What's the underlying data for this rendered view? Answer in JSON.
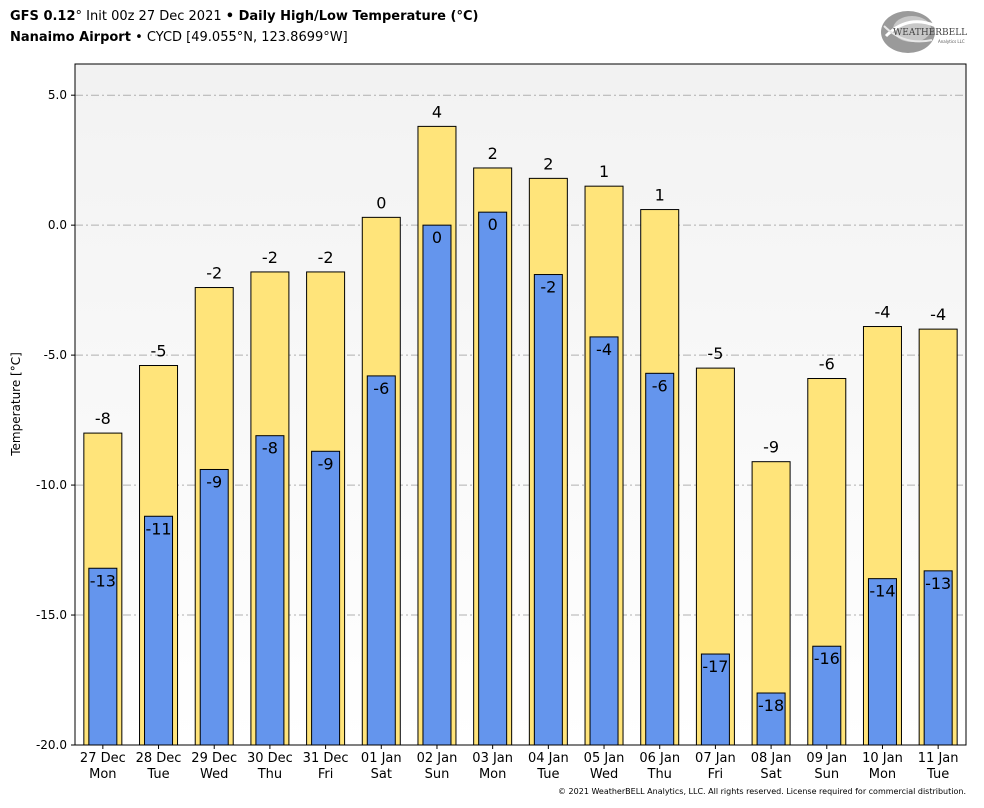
{
  "header": {
    "line1_model": "GFS 0.12",
    "line1_degree": "°",
    "line1_init": " Init 00z 27 Dec 2021 ",
    "line1_bullet": "•",
    "line1_title": " Daily High/Low Temperature (",
    "line1_unit": "°C)",
    "line2_station": "Nanaimo Airport",
    "line2_bullet": " • ",
    "line2_code": "CYCD [49.055°N, 123.8699°W]"
  },
  "logo": {
    "text_main": "WEATHERBELL",
    "text_sub": "Analytics LLC",
    "icon": "weatherbell-swirl-logo"
  },
  "footer": {
    "copyright": "© 2021 WeatherBELL Analytics, LLC. All rights reserved. License required for commercial distribution."
  },
  "colors": {
    "high": "#FFE47A",
    "low": "#6495ED",
    "plot_bg": "#f4f4f4",
    "grid": "#b0b0b0"
  },
  "chart_data": {
    "type": "bar",
    "ylabel": "Temperature [°C]",
    "ylim": [
      -20,
      6.2
    ],
    "yticks": [
      5.0,
      0.0,
      -5.0,
      -10.0,
      -15.0,
      -20.0
    ],
    "ytick_labels": [
      "5.0",
      "0.0",
      "-5.0",
      "-10.0",
      "-15.0",
      "-20.0"
    ],
    "grid": true,
    "categories": [
      {
        "date": "27 Dec",
        "day": "Mon"
      },
      {
        "date": "28 Dec",
        "day": "Tue"
      },
      {
        "date": "29 Dec",
        "day": "Wed"
      },
      {
        "date": "30 Dec",
        "day": "Thu"
      },
      {
        "date": "31 Dec",
        "day": "Fri"
      },
      {
        "date": "01 Jan",
        "day": "Sat"
      },
      {
        "date": "02 Jan",
        "day": "Sun"
      },
      {
        "date": "03 Jan",
        "day": "Mon"
      },
      {
        "date": "04 Jan",
        "day": "Tue"
      },
      {
        "date": "05 Jan",
        "day": "Wed"
      },
      {
        "date": "06 Jan",
        "day": "Thu"
      },
      {
        "date": "07 Jan",
        "day": "Fri"
      },
      {
        "date": "08 Jan",
        "day": "Sat"
      },
      {
        "date": "09 Jan",
        "day": "Sun"
      },
      {
        "date": "10 Jan",
        "day": "Mon"
      },
      {
        "date": "11 Jan",
        "day": "Tue"
      }
    ],
    "series": [
      {
        "values": [
          -8.0,
          -5.4,
          -2.4,
          -1.8,
          -1.8,
          0.3,
          3.8,
          2.2,
          1.8,
          1.5,
          0.6,
          -5.5,
          -9.1,
          -5.9,
          -3.9,
          -4.0
        ],
        "labels": [
          "-8",
          "-5",
          "-2",
          "-2",
          "-2",
          "0",
          "4",
          "2",
          "2",
          "1",
          "1",
          "-5",
          "-9",
          "-6",
          "-4",
          "-4"
        ]
      },
      {
        "values": [
          -13.2,
          -11.2,
          -9.4,
          -8.1,
          -8.7,
          -5.8,
          0.0,
          0.5,
          -1.9,
          -4.3,
          -5.7,
          -16.5,
          -18.0,
          -16.2,
          -13.6,
          -13.3
        ],
        "labels": [
          "-13",
          "-11",
          "-9",
          "-8",
          "-9",
          "-6",
          "0",
          "0",
          "-2",
          "-4",
          "-6",
          "-17",
          "-18",
          "-16",
          "-14",
          "-13"
        ]
      }
    ]
  }
}
